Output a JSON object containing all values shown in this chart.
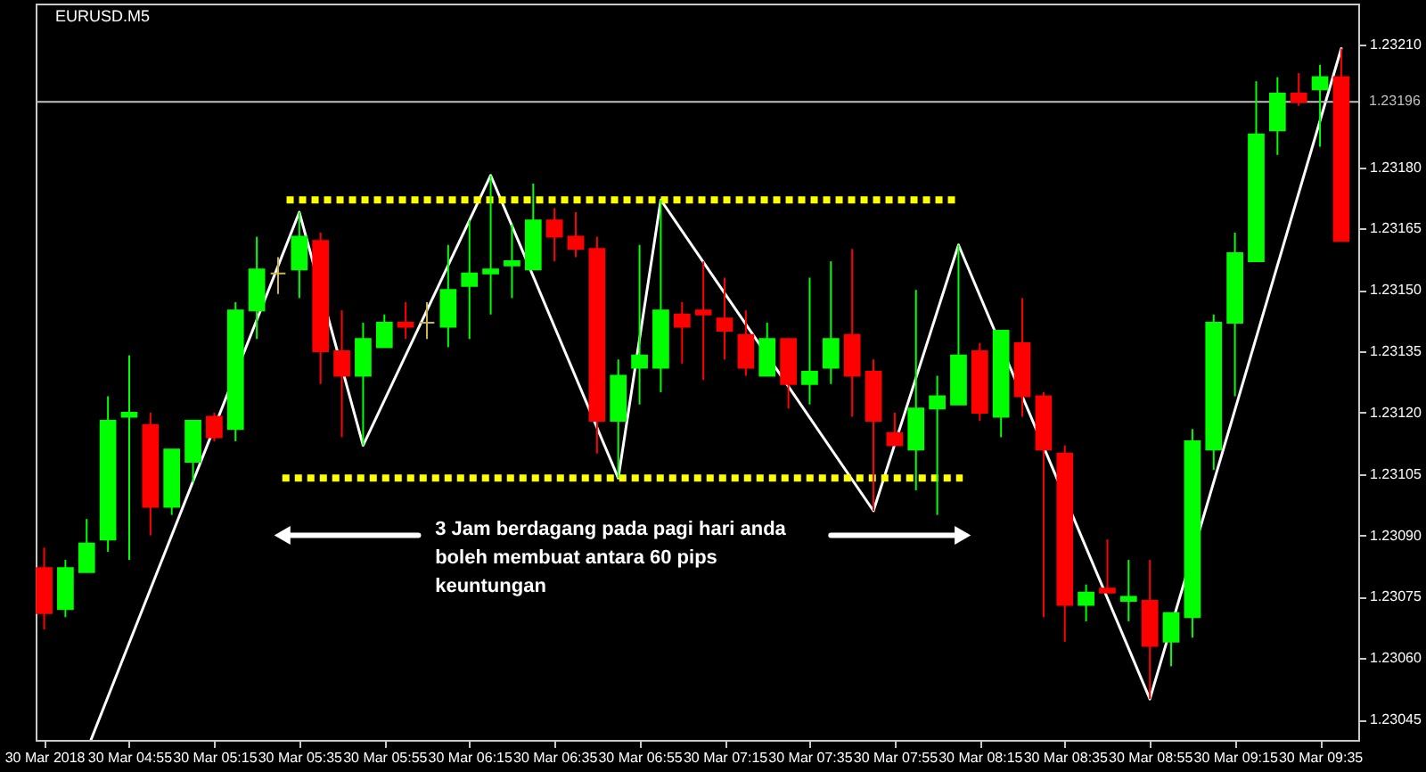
{
  "chart_data": {
    "type": "candlestick",
    "title": "EURUSD.M5",
    "x": [
      "2018-03-30T04:35",
      "2018-03-30T04:40",
      "2018-03-30T04:45",
      "2018-03-30T04:50",
      "2018-03-30T04:55",
      "2018-03-30T05:00",
      "2018-03-30T05:05",
      "2018-03-30T05:10",
      "2018-03-30T05:15",
      "2018-03-30T05:20",
      "2018-03-30T05:25",
      "2018-03-30T05:30",
      "2018-03-30T05:35",
      "2018-03-30T05:40",
      "2018-03-30T05:45",
      "2018-03-30T05:50",
      "2018-03-30T05:55",
      "2018-03-30T06:00",
      "2018-03-30T06:05",
      "2018-03-30T06:10",
      "2018-03-30T06:15",
      "2018-03-30T06:20",
      "2018-03-30T06:25",
      "2018-03-30T06:30",
      "2018-03-30T06:35",
      "2018-03-30T06:40",
      "2018-03-30T06:45",
      "2018-03-30T06:50",
      "2018-03-30T06:55",
      "2018-03-30T07:00",
      "2018-03-30T07:05",
      "2018-03-30T07:10",
      "2018-03-30T07:15",
      "2018-03-30T07:20",
      "2018-03-30T07:25",
      "2018-03-30T07:30",
      "2018-03-30T07:35",
      "2018-03-30T07:40",
      "2018-03-30T07:45",
      "2018-03-30T07:50",
      "2018-03-30T07:55",
      "2018-03-30T08:00",
      "2018-03-30T08:05",
      "2018-03-30T08:10",
      "2018-03-30T08:15",
      "2018-03-30T08:20",
      "2018-03-30T08:25",
      "2018-03-30T08:30",
      "2018-03-30T08:35",
      "2018-03-30T08:40",
      "2018-03-30T08:45",
      "2018-03-30T08:50",
      "2018-03-30T08:55",
      "2018-03-30T09:00",
      "2018-03-30T09:05",
      "2018-03-30T09:10",
      "2018-03-30T09:15",
      "2018-03-30T09:20",
      "2018-03-30T09:25",
      "2018-03-30T09:30",
      "2018-03-30T09:35",
      "2018-03-30T09:40"
    ],
    "ohlc": [
      [
        1.23082,
        1.23087,
        1.23067,
        1.23071
      ],
      [
        1.23072,
        1.23084,
        1.2307,
        1.23082
      ],
      [
        1.23081,
        1.23094,
        1.23081,
        1.23088
      ],
      [
        1.23089,
        1.23124,
        1.23086,
        1.23118
      ],
      [
        1.23119,
        1.23134,
        1.23084,
        1.2312
      ],
      [
        1.23117,
        1.2312,
        1.2309,
        1.23097
      ],
      [
        1.23097,
        1.23111,
        1.23095,
        1.23111
      ],
      [
        1.23108,
        1.23118,
        1.23103,
        1.23118
      ],
      [
        1.23119,
        1.2312,
        1.23113,
        1.23114
      ],
      [
        1.23116,
        1.23147,
        1.23113,
        1.23145
      ],
      [
        1.23145,
        1.23163,
        1.23138,
        1.23155
      ],
      [
        1.23154,
        1.23158,
        1.23149,
        1.23154
      ],
      [
        1.23155,
        1.23169,
        1.23148,
        1.23163
      ],
      [
        1.23162,
        1.23164,
        1.23127,
        1.23135
      ],
      [
        1.23135,
        1.23145,
        1.23114,
        1.23129
      ],
      [
        1.23129,
        1.23142,
        1.23112,
        1.23138
      ],
      [
        1.23136,
        1.23144,
        1.23136,
        1.23142
      ],
      [
        1.23142,
        1.23147,
        1.23138,
        1.23141
      ],
      [
        1.23142,
        1.23147,
        1.23138,
        1.23142
      ],
      [
        1.23141,
        1.23161,
        1.23136,
        1.2315
      ],
      [
        1.23151,
        1.23167,
        1.23138,
        1.23154
      ],
      [
        1.23154,
        1.23178,
        1.23144,
        1.23155
      ],
      [
        1.23156,
        1.23166,
        1.23148,
        1.23157
      ],
      [
        1.23155,
        1.23176,
        1.23155,
        1.23167
      ],
      [
        1.23167,
        1.2317,
        1.23157,
        1.23163
      ],
      [
        1.23163,
        1.23169,
        1.23158,
        1.2316
      ],
      [
        1.2316,
        1.23163,
        1.2311,
        1.23118
      ],
      [
        1.23118,
        1.23133,
        1.23104,
        1.23129
      ],
      [
        1.23131,
        1.23161,
        1.23122,
        1.23134
      ],
      [
        1.23131,
        1.23172,
        1.23125,
        1.23145
      ],
      [
        1.23144,
        1.23147,
        1.23132,
        1.23141
      ],
      [
        1.23145,
        1.23157,
        1.23128,
        1.23144
      ],
      [
        1.23143,
        1.23153,
        1.23133,
        1.2314
      ],
      [
        1.23139,
        1.23145,
        1.23129,
        1.23131
      ],
      [
        1.23129,
        1.23142,
        1.23129,
        1.23138
      ],
      [
        1.23138,
        1.23138,
        1.23121,
        1.23127
      ],
      [
        1.23127,
        1.23153,
        1.23122,
        1.2313
      ],
      [
        1.23131,
        1.23157,
        1.23127,
        1.23138
      ],
      [
        1.23139,
        1.2316,
        1.23119,
        1.23129
      ],
      [
        1.2313,
        1.23133,
        1.23096,
        1.23118
      ],
      [
        1.23115,
        1.2312,
        1.23112,
        1.23112
      ],
      [
        1.23111,
        1.2315,
        1.23101,
        1.23121
      ],
      [
        1.23121,
        1.23129,
        1.23095,
        1.23124
      ],
      [
        1.23122,
        1.23161,
        1.23122,
        1.23134
      ],
      [
        1.23135,
        1.23137,
        1.23118,
        1.2312
      ],
      [
        1.23119,
        1.2314,
        1.23114,
        1.2314
      ],
      [
        1.23137,
        1.23148,
        1.23119,
        1.23124
      ],
      [
        1.23124,
        1.23125,
        1.2307,
        1.23111
      ],
      [
        1.2311,
        1.23112,
        1.23064,
        1.23073
      ],
      [
        1.23073,
        1.23078,
        1.23069,
        1.23076
      ],
      [
        1.23077,
        1.23089,
        1.23076,
        1.23076
      ],
      [
        1.23074,
        1.23084,
        1.23069,
        1.23075
      ],
      [
        1.23074,
        1.23084,
        1.2305,
        1.23063
      ],
      [
        1.23064,
        1.23071,
        1.23058,
        1.23071
      ],
      [
        1.2307,
        1.23116,
        1.23065,
        1.23113
      ],
      [
        1.23111,
        1.23144,
        1.23106,
        1.23142
      ],
      [
        1.23142,
        1.23164,
        1.23124,
        1.23159
      ],
      [
        1.23157,
        1.23201,
        1.23157,
        1.23188
      ],
      [
        1.23189,
        1.23202,
        1.23183,
        1.23198
      ],
      [
        1.23198,
        1.23203,
        1.23195,
        1.23196
      ],
      [
        1.23199,
        1.23205,
        1.23185,
        1.23202
      ],
      [
        1.23202,
        1.23209,
        1.23162,
        1.23162
      ]
    ],
    "colors": [
      "#ff0000",
      "#00ff00",
      "#00ff00",
      "#00ff00",
      "#00ff00",
      "#ff0000",
      "#00ff00",
      "#00ff00",
      "#ff0000",
      "#00ff00",
      "#00ff00",
      "#c8b450",
      "#00ff00",
      "#ff0000",
      "#ff0000",
      "#00ff00",
      "#00ff00",
      "#ff0000",
      "#c8b450",
      "#00ff00",
      "#00ff00",
      "#00ff00",
      "#00ff00",
      "#00ff00",
      "#ff0000",
      "#ff0000",
      "#ff0000",
      "#00ff00",
      "#00ff00",
      "#00ff00",
      "#ff0000",
      "#ff0000",
      "#ff0000",
      "#ff0000",
      "#00ff00",
      "#ff0000",
      "#00ff00",
      "#00ff00",
      "#ff0000",
      "#ff0000",
      "#ff0000",
      "#00ff00",
      "#00ff00",
      "#00ff00",
      "#ff0000",
      "#00ff00",
      "#ff0000",
      "#ff0000",
      "#ff0000",
      "#00ff00",
      "#ff0000",
      "#00ff00",
      "#ff0000",
      "#00ff00",
      "#00ff00",
      "#00ff00",
      "#00ff00",
      "#00ff00",
      "#00ff00",
      "#ff0000",
      "#00ff00",
      "#ff0000"
    ],
    "series": [
      {
        "type": "line",
        "color": "#ffffff",
        "x": [
          "2018-03-30T04:46",
          "2018-03-30T05:35",
          "2018-03-30T05:50",
          "2018-03-30T06:20",
          "2018-03-30T06:50",
          "2018-03-30T07:00",
          "2018-03-30T07:50",
          "2018-03-30T08:10",
          "2018-03-30T08:55",
          "2018-03-30T09:40"
        ],
        "values": [
          1.2304,
          1.23169,
          1.23112,
          1.23178,
          1.23104,
          1.23172,
          1.23096,
          1.23161,
          1.2305,
          1.23209
        ]
      },
      {
        "type": "line",
        "color": "#ffff00",
        "line_style": "dotted",
        "x": [
          "2018-03-30T05:32",
          "2018-03-30T08:10"
        ],
        "values": [
          1.23172,
          1.23172
        ]
      },
      {
        "type": "line",
        "color": "#ffff00",
        "line_style": "dotted",
        "x": [
          "2018-03-30T05:31",
          "2018-03-30T08:11"
        ],
        "values": [
          1.23104,
          1.23104
        ]
      },
      {
        "type": "line",
        "color": "#ffffff",
        "marker": "triangle",
        "x": [
          "2018-03-30T06:03",
          "2018-03-30T05:31"
        ],
        "values": [
          1.2309,
          1.2309
        ]
      },
      {
        "type": "line",
        "color": "#ffffff",
        "marker": "triangle",
        "x": [
          "2018-03-30T07:40",
          "2018-03-30T08:11"
        ],
        "values": [
          1.2309,
          1.2309
        ]
      }
    ],
    "ref_lines": [
      {
        "axis": "y",
        "value": 1.23196,
        "label": "1.23196",
        "color": "#c0c0c0"
      }
    ],
    "annotations": [
      "3 Jam berdagang pada pagi hari anda\nboleh membuat antara 60 pips\nkeuntungan"
    ],
    "xlim": [
      "2018-03-30T04:33",
      "2018-03-30T09:44"
    ],
    "xticks": [
      {
        "value": "2018-03-30T04:35",
        "label": "30 Mar 2018"
      },
      {
        "value": "2018-03-30T04:55",
        "label": "30 Mar 04:55"
      },
      {
        "value": "2018-03-30T05:15",
        "label": "30 Mar 05:15"
      },
      {
        "value": "2018-03-30T05:35",
        "label": "30 Mar 05:35"
      },
      {
        "value": "2018-03-30T05:55",
        "label": "30 Mar 05:55"
      },
      {
        "value": "2018-03-30T06:15",
        "label": "30 Mar 06:15"
      },
      {
        "value": "2018-03-30T06:35",
        "label": "30 Mar 06:35"
      },
      {
        "value": "2018-03-30T06:55",
        "label": "30 Mar 06:55"
      },
      {
        "value": "2018-03-30T07:15",
        "label": "30 Mar 07:15"
      },
      {
        "value": "2018-03-30T07:35",
        "label": "30 Mar 07:35"
      },
      {
        "value": "2018-03-30T07:55",
        "label": "30 Mar 07:55"
      },
      {
        "value": "2018-03-30T08:15",
        "label": "30 Mar 08:15"
      },
      {
        "value": "2018-03-30T08:35",
        "label": "30 Mar 08:35"
      },
      {
        "value": "2018-03-30T08:55",
        "label": "30 Mar 08:55"
      },
      {
        "value": "2018-03-30T09:15",
        "label": "30 Mar 09:15"
      },
      {
        "value": "2018-03-30T09:35",
        "label": "30 Mar 09:35"
      }
    ],
    "ylim": [
      1.2304,
      1.2322
    ],
    "yticks": [
      {
        "value": 1.23045,
        "label": "1.23045"
      },
      {
        "value": 1.2306,
        "label": "1.23060"
      },
      {
        "value": 1.23075,
        "label": "1.23075"
      },
      {
        "value": 1.2309,
        "label": "1.23090"
      },
      {
        "value": 1.23105,
        "label": "1.23105"
      },
      {
        "value": 1.2312,
        "label": "1.23120"
      },
      {
        "value": 1.23135,
        "label": "1.23135"
      },
      {
        "value": 1.2315,
        "label": "1.23150"
      },
      {
        "value": 1.23165,
        "label": "1.23165"
      },
      {
        "value": 1.2318,
        "label": "1.23180"
      },
      {
        "value": 1.2321,
        "label": "1.23210"
      }
    ]
  }
}
